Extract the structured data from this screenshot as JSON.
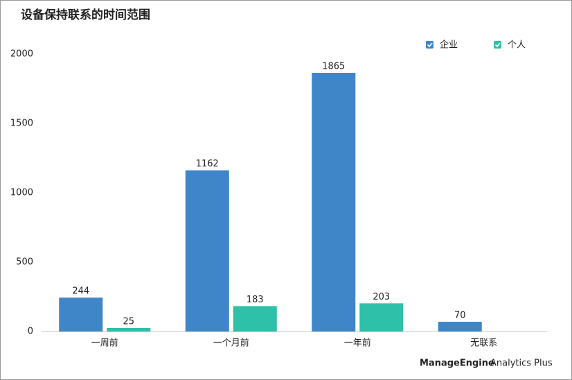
{
  "chart_data": {
    "type": "bar",
    "title": "设备保持联系的时间范围",
    "categories": [
      "一周前",
      "一个月前",
      "一年前",
      "无联系"
    ],
    "series": [
      {
        "name": "企业",
        "color": "#3f86c8",
        "values": [
          244,
          1162,
          1865,
          70
        ]
      },
      {
        "name": "个人",
        "color": "#2ec0a8",
        "values": [
          25,
          183,
          203,
          null
        ]
      }
    ],
    "ylim": [
      0,
      2000
    ],
    "yticks": [
      0,
      500,
      1000,
      1500,
      2000
    ],
    "grid": false,
    "legend": "top-right"
  },
  "branding": {
    "company": "ManageEngine",
    "product": "Analytics Plus"
  }
}
